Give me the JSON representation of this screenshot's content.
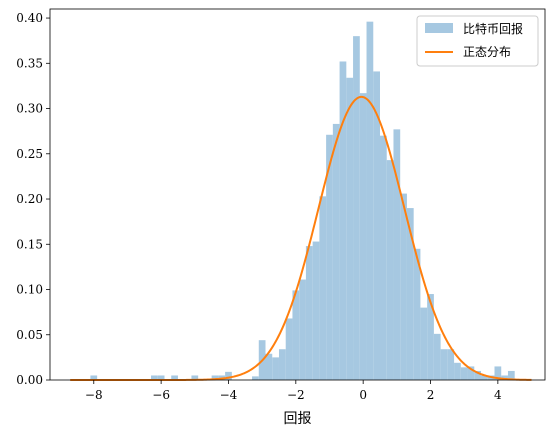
{
  "chart_data": {
    "type": "histogram",
    "xlabel": "回报",
    "ylabel": "",
    "title": "",
    "xlim": [
      -9.3,
      5.4
    ],
    "ylim": [
      0,
      0.41
    ],
    "xticks": [
      -8,
      -6,
      -4,
      -2,
      0,
      2,
      4
    ],
    "yticks": [
      0.0,
      0.05,
      0.1,
      0.15,
      0.2,
      0.25,
      0.3,
      0.35,
      0.4
    ],
    "bin_width": 0.2,
    "legend": {
      "placement": "top-right",
      "entries": [
        "比特币回报",
        "正态分布"
      ]
    },
    "series": [
      {
        "name": "比特币回报",
        "kind": "histogram",
        "color": "#a6c8e1",
        "bins": [
          {
            "x0": -8.1,
            "height": 0.005
          },
          {
            "x0": -6.3,
            "height": 0.005
          },
          {
            "x0": -6.1,
            "height": 0.005
          },
          {
            "x0": -5.7,
            "height": 0.005
          },
          {
            "x0": -5.1,
            "height": 0.005
          },
          {
            "x0": -4.5,
            "height": 0.005
          },
          {
            "x0": -4.3,
            "height": 0.005
          },
          {
            "x0": -4.1,
            "height": 0.009
          },
          {
            "x0": -3.3,
            "height": 0.004
          },
          {
            "x0": -3.1,
            "height": 0.044
          },
          {
            "x0": -2.9,
            "height": 0.029
          },
          {
            "x0": -2.7,
            "height": 0.025
          },
          {
            "x0": -2.5,
            "height": 0.034
          },
          {
            "x0": -2.3,
            "height": 0.068
          },
          {
            "x0": -2.1,
            "height": 0.099
          },
          {
            "x0": -1.9,
            "height": 0.111
          },
          {
            "x0": -1.7,
            "height": 0.148
          },
          {
            "x0": -1.5,
            "height": 0.153
          },
          {
            "x0": -1.3,
            "height": 0.203
          },
          {
            "x0": -1.1,
            "height": 0.271
          },
          {
            "x0": -0.9,
            "height": 0.283
          },
          {
            "x0": -0.7,
            "height": 0.352
          },
          {
            "x0": -0.5,
            "height": 0.334
          },
          {
            "x0": -0.3,
            "height": 0.38
          },
          {
            "x0": -0.1,
            "height": 0.317
          },
          {
            "x0": 0.1,
            "height": 0.396
          },
          {
            "x0": 0.3,
            "height": 0.341
          },
          {
            "x0": 0.5,
            "height": 0.27
          },
          {
            "x0": 0.7,
            "height": 0.243
          },
          {
            "x0": 0.9,
            "height": 0.277
          },
          {
            "x0": 1.1,
            "height": 0.206
          },
          {
            "x0": 1.3,
            "height": 0.19
          },
          {
            "x0": 1.5,
            "height": 0.145
          },
          {
            "x0": 1.7,
            "height": 0.08
          },
          {
            "x0": 1.9,
            "height": 0.095
          },
          {
            "x0": 2.1,
            "height": 0.051
          },
          {
            "x0": 2.3,
            "height": 0.034
          },
          {
            "x0": 2.5,
            "height": 0.034
          },
          {
            "x0": 2.7,
            "height": 0.019
          },
          {
            "x0": 2.9,
            "height": 0.014
          },
          {
            "x0": 3.1,
            "height": 0.015
          },
          {
            "x0": 3.3,
            "height": 0.01
          },
          {
            "x0": 3.5,
            "height": 0.005
          },
          {
            "x0": 3.7,
            "height": 0.005
          },
          {
            "x0": 3.9,
            "height": 0.015
          },
          {
            "x0": 4.1,
            "height": 0.005
          },
          {
            "x0": 4.3,
            "height": 0.01
          }
        ]
      },
      {
        "name": "正态分布",
        "kind": "line",
        "color": "#ff7f0e",
        "mean": -0.05,
        "std": 1.275,
        "x_range": [
          -8.7,
          5.0
        ]
      }
    ]
  }
}
